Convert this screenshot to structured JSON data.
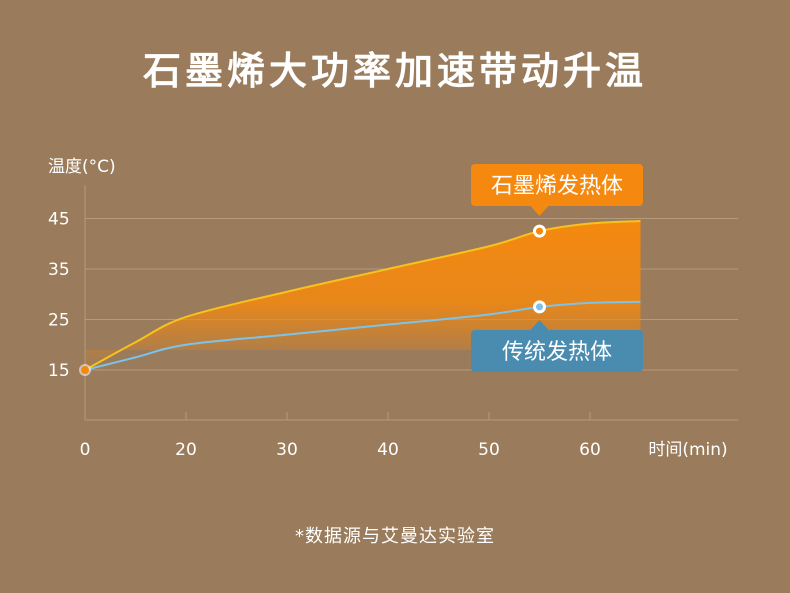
{
  "title": "石墨烯大功率加速带动升温",
  "footnote": "*数据源与艾曼达实验室",
  "colors": {
    "background": "#9a7b5b",
    "graphene": "#f5890f",
    "graphene_line": "#f7c21e",
    "traditional": "#4a8cb0",
    "traditional_line": "#7cc3ea",
    "grid": "#b59a7f"
  },
  "chart_data": {
    "type": "area",
    "ylabel": "温度(°C)",
    "xlabel": "时间(min)",
    "yticks": [
      15,
      25,
      35,
      45
    ],
    "xticks": [
      0,
      20,
      30,
      40,
      50,
      60
    ],
    "ylim": [
      6,
      48
    ],
    "grid": true,
    "series": [
      {
        "name": "石墨烯发热体",
        "x": [
          0,
          10,
          20,
          30,
          40,
          50,
          55,
          60,
          65
        ],
        "y": [
          15,
          20.5,
          25.5,
          30.5,
          35,
          39.5,
          42.5,
          44,
          44.5
        ]
      },
      {
        "name": "传统发热体",
        "x": [
          0,
          10,
          20,
          30,
          40,
          50,
          55,
          60,
          65
        ],
        "y": [
          15,
          17.5,
          20,
          22,
          24,
          26,
          27.5,
          28.3,
          28.5
        ]
      }
    ],
    "highlight_x": 55
  }
}
